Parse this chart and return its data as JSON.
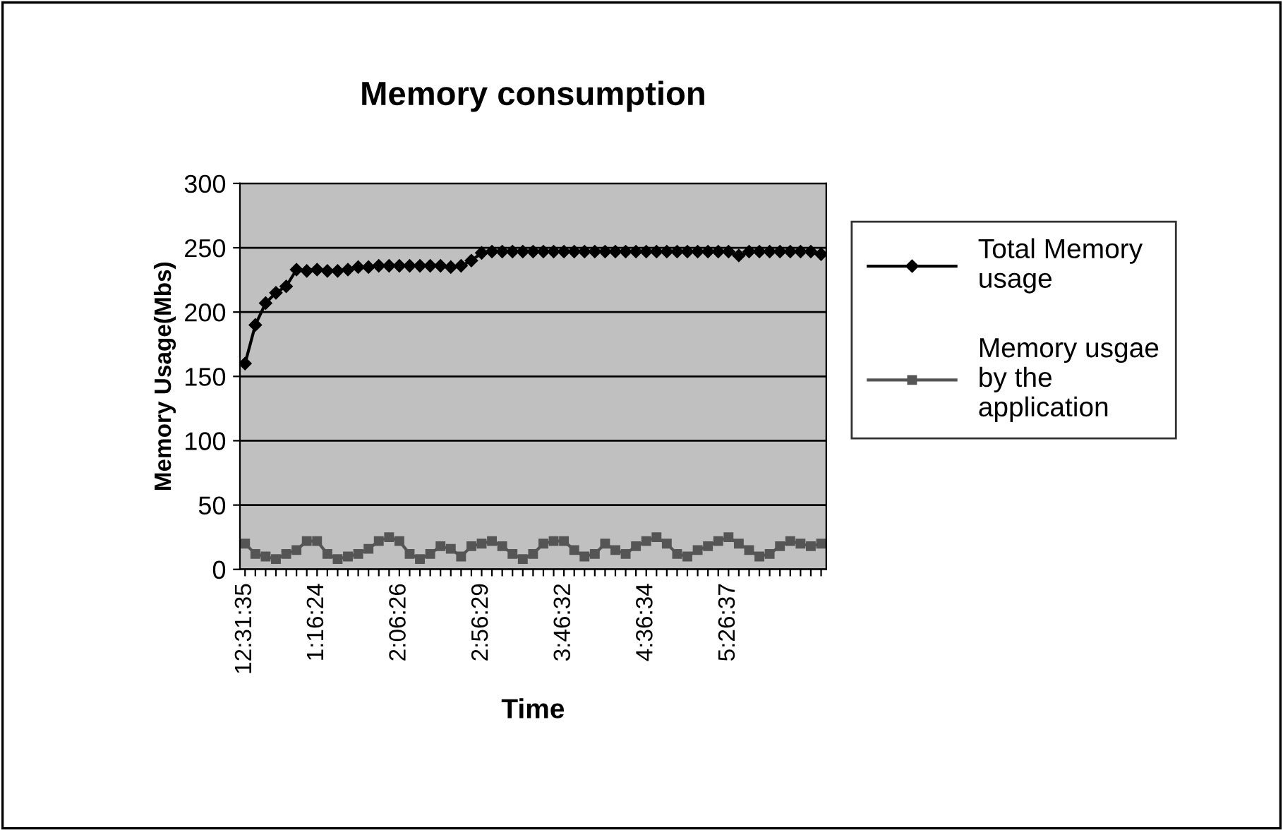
{
  "chart_data": {
    "type": "line",
    "title": "Memory consumption",
    "xlabel": "Time",
    "ylabel": "Memory Usage(Mbs)",
    "categories": [
      "12:31:35",
      null,
      null,
      null,
      null,
      null,
      null,
      "1:16:24",
      null,
      null,
      null,
      null,
      null,
      null,
      null,
      "2:06:26",
      null,
      null,
      null,
      null,
      null,
      null,
      null,
      "2:56:29",
      null,
      null,
      null,
      null,
      null,
      null,
      null,
      "3:46:32",
      null,
      null,
      null,
      null,
      null,
      null,
      null,
      "4:36:34",
      null,
      null,
      null,
      null,
      null,
      null,
      null,
      "5:26:37",
      null,
      null,
      null,
      null,
      null,
      null,
      null,
      null,
      null
    ],
    "series": [
      {
        "name": "Total Memory usage",
        "color": "#000000",
        "marker": "diamond",
        "values": [
          160,
          190,
          207,
          215,
          220,
          233,
          232,
          233,
          232,
          232,
          233,
          235,
          235,
          236,
          236,
          236,
          236,
          236,
          236,
          236,
          235,
          236,
          240,
          246,
          247,
          247,
          247,
          247,
          247,
          247,
          247,
          247,
          247,
          247,
          247,
          247,
          247,
          247,
          247,
          247,
          247,
          247,
          247,
          247,
          247,
          247,
          247,
          247,
          244,
          247,
          247,
          247,
          247,
          247,
          247,
          247,
          245
        ]
      },
      {
        "name": "Memory usgae by the application",
        "color": "#555555",
        "marker": "square",
        "values": [
          20,
          12,
          10,
          8,
          12,
          15,
          22,
          22,
          12,
          8,
          10,
          12,
          16,
          22,
          25,
          22,
          12,
          8,
          12,
          18,
          16,
          10,
          18,
          20,
          22,
          18,
          12,
          8,
          12,
          20,
          22,
          22,
          15,
          10,
          12,
          20,
          15,
          12,
          18,
          22,
          25,
          20,
          12,
          10,
          15,
          18,
          22,
          25,
          20,
          15,
          10,
          12,
          18,
          22,
          20,
          18,
          20
        ]
      }
    ],
    "ylim": [
      0,
      300
    ],
    "yticks": [
      0,
      50,
      100,
      150,
      200,
      250,
      300
    ],
    "grid": "y",
    "legend": "right"
  }
}
